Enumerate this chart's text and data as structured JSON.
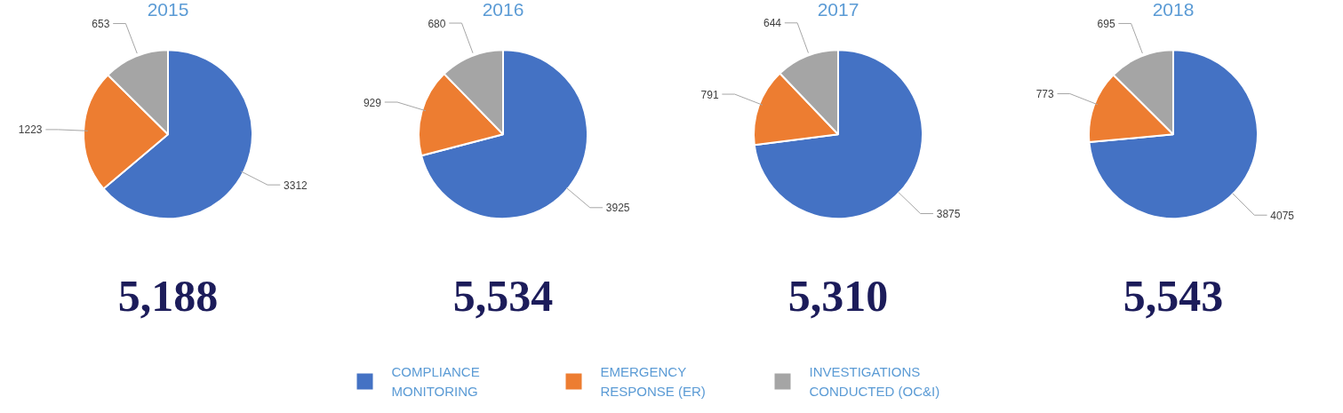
{
  "chart_data": [
    {
      "type": "pie",
      "title": "2015",
      "categories": [
        "COMPLIANCE MONITORING",
        "EMERGENCY RESPONSE (ER)",
        "INVESTIGATIONS CONDUCTED (OC&I)"
      ],
      "values": [
        3312,
        1223,
        653
      ],
      "colors": [
        "#4472c4",
        "#ed7d31",
        "#a5a5a5"
      ],
      "data_labels": true,
      "legend": "bottom",
      "annotations": [
        "5,188"
      ]
    },
    {
      "type": "pie",
      "title": "2016",
      "categories": [
        null,
        null,
        null
      ],
      "values": [
        3925,
        929,
        680
      ],
      "colors": [
        "#4472c4",
        "#ed7d31",
        "#a5a5a5"
      ],
      "data_labels": true,
      "annotations": [
        "5,534"
      ]
    },
    {
      "type": "pie",
      "title": "2017",
      "categories": [
        null,
        null,
        null
      ],
      "values": [
        3875,
        791,
        644
      ],
      "colors": [
        "#4472c4",
        "#ed7d31",
        "#a5a5a5"
      ],
      "data_labels": true,
      "annotations": [
        "5,310"
      ]
    },
    {
      "type": "pie",
      "title": "2018",
      "categories": [
        null,
        null,
        null
      ],
      "values": [
        4075,
        773,
        695
      ],
      "colors": [
        "#4472c4",
        "#ed7d31",
        "#a5a5a5"
      ],
      "data_labels": true,
      "annotations": [
        "5,543"
      ]
    }
  ]
}
